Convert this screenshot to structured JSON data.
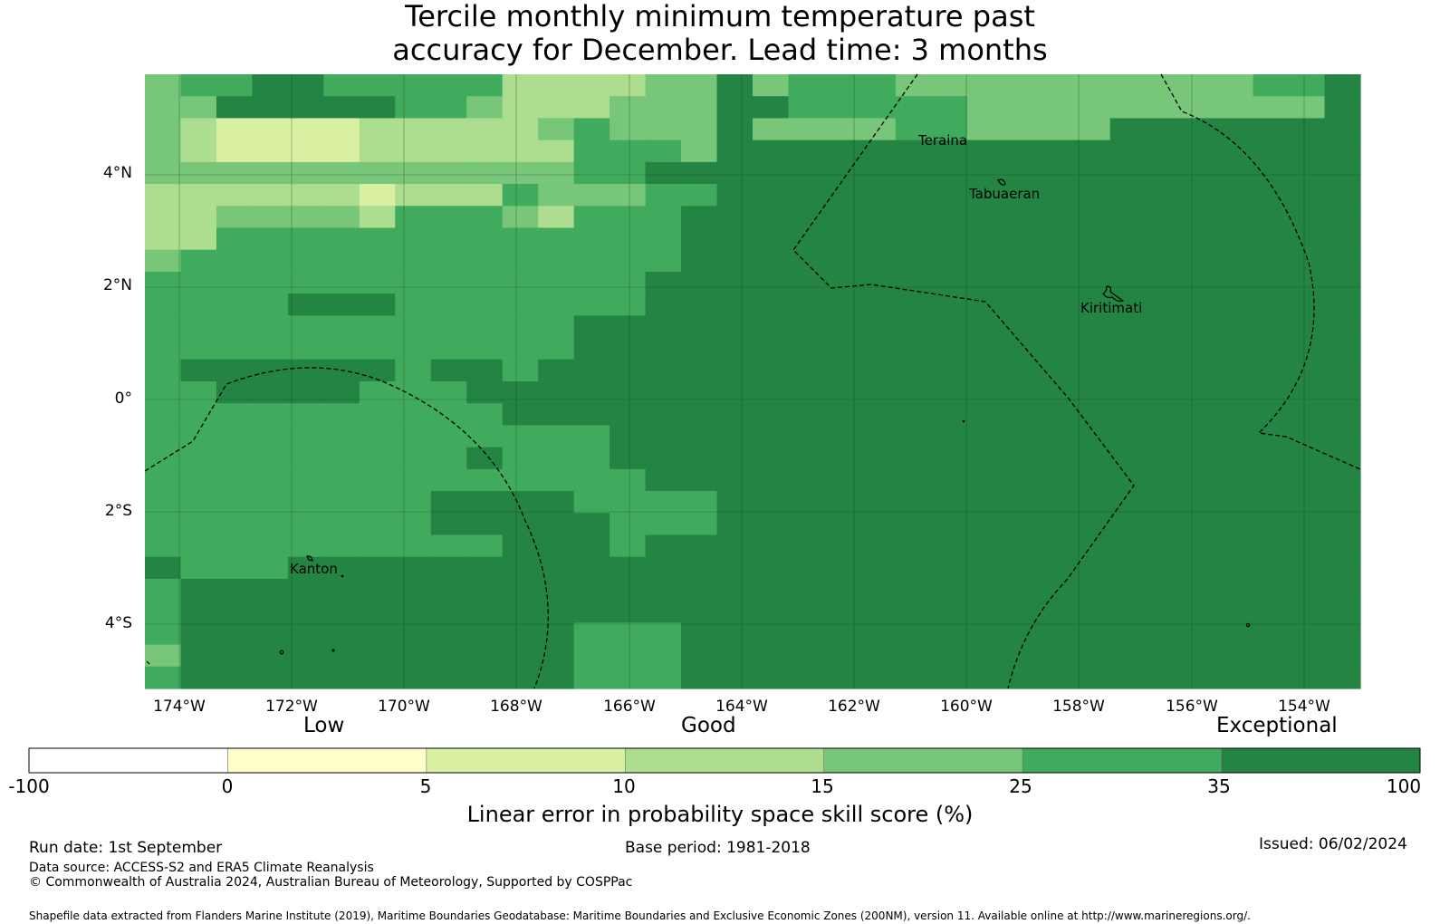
{
  "title": {
    "line1": "Tercile monthly minimum temperature past",
    "line2": "accuracy for December. Lead time: 3 months"
  },
  "map": {
    "lat_labels": [
      "4°N",
      "2°N",
      "0°",
      "2°S",
      "4°S"
    ],
    "lon_labels": [
      "174°W",
      "172°W",
      "170°W",
      "168°W",
      "166°W",
      "164°W",
      "162°W",
      "160°W",
      "158°W",
      "156°W",
      "154°W"
    ],
    "places": [
      "Teraina",
      "Tabuaeran",
      "Kiritimati",
      "Kanton"
    ],
    "colors": {
      "c0": "#ffffff",
      "c1": "#ffffcc",
      "c2": "#d9f0a3",
      "c3": "#addd8e",
      "c4": "#78c679",
      "c5": "#41ab5d",
      "c6": "#238443"
    },
    "grid_rows": [
      "4556655555333344645554444444444556",
      "4466666554333444665555544444444446",
      "4322223333345444644445544446666666",
      "4322223333335554666666666666666666",
      "4444444444445566666666666666666666",
      "3333332333544455666666666666666666",
      "3344443555435556666666666666666666",
      "3355555555555556666666666666666666",
      "4555555555555556666666666666666666",
      "5555555555555566666666666666666666",
      "5555666555555566666666666666666666",
      "5555555555556666666666666666666666",
      "5555555555556666666666666666666666",
      "5666666566566666666666666666666666",
      "5566665556666666666666666666666666",
      "5555555555666666666666666666666666",
      "5555555555555666666666666666666666",
      "5555555556555666666666666666666666",
      "5555555555555566666666666666666666",
      "5555555566665555666666666666666666",
      "5555555566666555666666666666666666",
      "5555555555666566666666666666666666",
      "6555666666666666666666666666666666",
      "5666666666666666666666666666666666",
      "5666666666666666666666666666666666",
      "5666666666665556666666666666666666",
      "4666666666665556666666666666666666",
      "5666666666665556666666666666666666"
    ]
  },
  "legend": {
    "categories": [
      "Low",
      "Good",
      "Exceptional"
    ],
    "ticks": [
      "-100",
      "0",
      "5",
      "10",
      "15",
      "25",
      "35",
      "100"
    ],
    "title": "Linear error in probability space skill score (%)"
  },
  "footer": {
    "run_date": "Run date: 1st September",
    "base_period": "Base period: 1981-2018",
    "issued": "Issued: 06/02/2024",
    "data_source": "Data source: ACCESS-S2 and ERA5 Climate Reanalysis",
    "copyright": "© Commonwealth of Australia 2024, Australian Bureau of Meteorology, Supported by COSPPac",
    "shapefile": "Shapefile data extracted from Flanders Marine Institute (2019), Maritime Boundaries Geodatabase: Maritime Boundaries and Exclusive Economic Zones (200NM), version 11. Available online at http://www.marineregions.org/."
  }
}
